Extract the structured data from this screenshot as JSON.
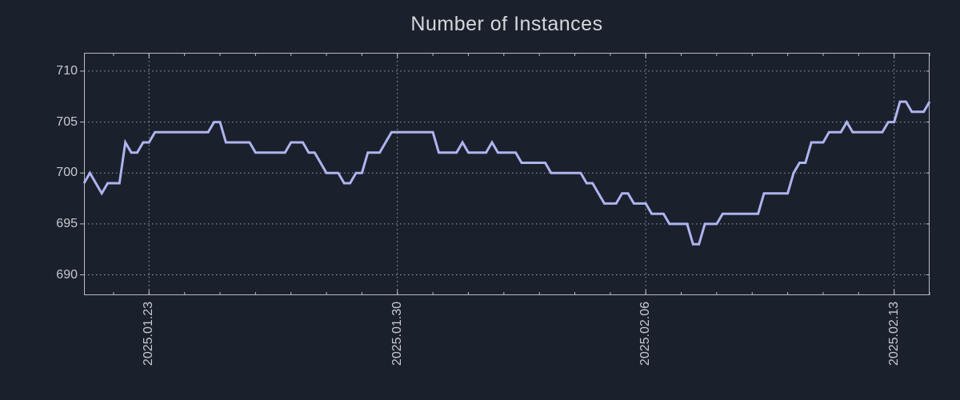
{
  "title": "Number of Instances",
  "colors": {
    "background": "#1a212c",
    "line": "#afb3ee",
    "tick_text": "#c6c9cf",
    "title_text": "#d5d7db",
    "border": "#b7bcc4",
    "grid": "#99a1ad"
  },
  "chart_data": {
    "type": "line",
    "title": "Number of Instances",
    "series_name": "instances",
    "x_start": "2025-01-21 04:00",
    "x_end": "2025-02-14 00:00",
    "interval_hours": 4,
    "values": [
      699,
      700,
      699,
      698,
      699,
      699,
      699,
      703,
      702,
      702,
      703,
      703,
      704,
      704,
      704,
      704,
      704,
      704,
      704,
      704,
      704,
      704,
      705,
      705,
      703,
      703,
      703,
      703,
      703,
      702,
      702,
      702,
      702,
      702,
      702,
      703,
      703,
      703,
      702,
      702,
      701,
      700,
      700,
      700,
      699,
      699,
      700,
      700,
      702,
      702,
      702,
      703,
      704,
      704,
      704,
      704,
      704,
      704,
      704,
      704,
      702,
      702,
      702,
      702,
      703,
      702,
      702,
      702,
      702,
      703,
      702,
      702,
      702,
      702,
      701,
      701,
      701,
      701,
      701,
      700,
      700,
      700,
      700,
      700,
      700,
      699,
      699,
      698,
      697,
      697,
      697,
      698,
      698,
      697,
      697,
      697,
      696,
      696,
      696,
      695,
      695,
      695,
      695,
      693,
      693,
      695,
      695,
      695,
      696,
      696,
      696,
      696,
      696,
      696,
      696,
      698,
      698,
      698,
      698,
      698,
      700,
      701,
      701,
      703,
      703,
      703,
      704,
      704,
      704,
      705,
      704,
      704,
      704,
      704,
      704,
      704,
      705,
      705,
      707,
      707,
      706,
      706,
      706,
      707
    ],
    "ylim": [
      688.0,
      711.8
    ],
    "yticks": [
      690,
      695,
      700,
      705,
      710
    ],
    "xticks": [
      {
        "index": 11,
        "label": "2025.01.23"
      },
      {
        "index": 53,
        "label": "2025.01.30"
      },
      {
        "index": 95,
        "label": "2025.02.06"
      },
      {
        "index": 137,
        "label": "2025.02.13"
      }
    ],
    "minor_xticks": {
      "first_index": 5,
      "step": 6
    },
    "grid": true,
    "grid_style": "dotted",
    "legend": false
  }
}
